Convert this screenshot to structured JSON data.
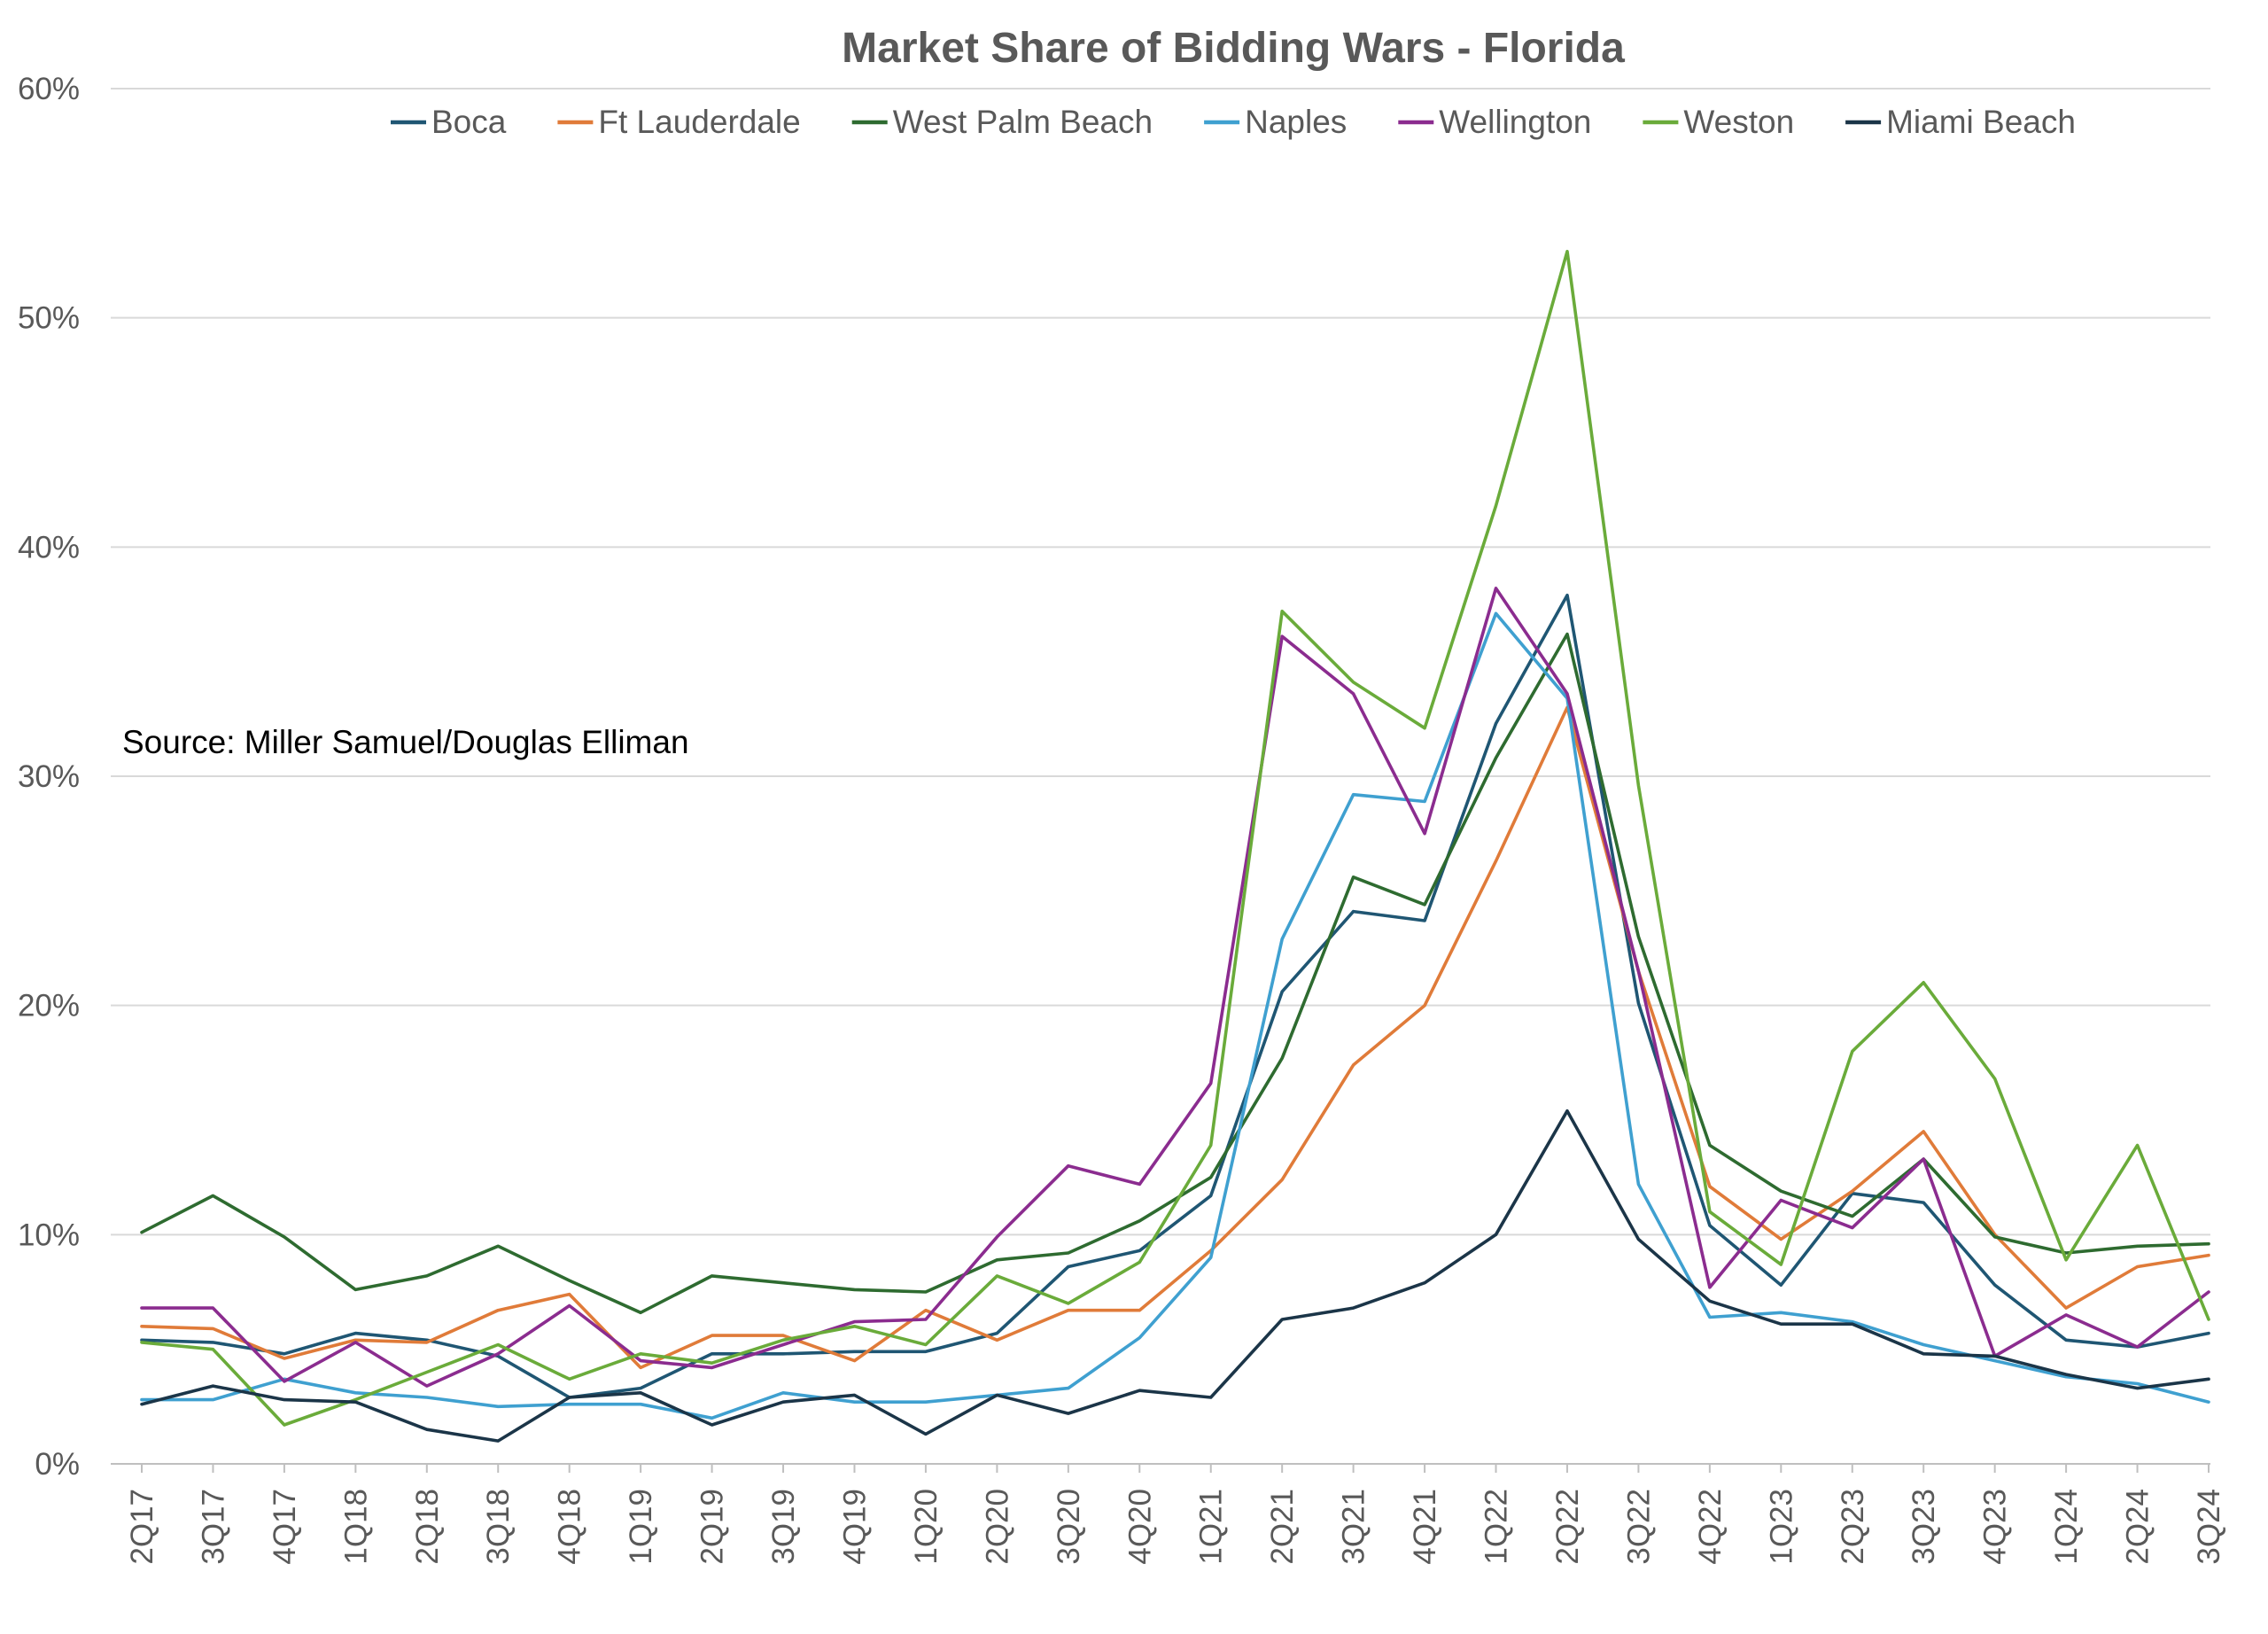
{
  "chart_data": {
    "type": "line",
    "title": "Market Share of Bidding Wars - Florida",
    "annotation": "Source: Miller Samuel/Douglas Elliman",
    "ylim": [
      0,
      60
    ],
    "yticks": [
      0,
      10,
      20,
      30,
      40,
      50,
      60
    ],
    "ytick_labels": [
      "0%",
      "10%",
      "20%",
      "30%",
      "40%",
      "50%",
      "60%"
    ],
    "grid": true,
    "legend_position": "top",
    "categories": [
      "2Q17",
      "3Q17",
      "4Q17",
      "1Q18",
      "2Q18",
      "3Q18",
      "4Q18",
      "1Q19",
      "2Q19",
      "3Q19",
      "4Q19",
      "1Q20",
      "2Q20",
      "3Q20",
      "4Q20",
      "1Q21",
      "2Q21",
      "3Q21",
      "4Q21",
      "1Q22",
      "2Q22",
      "3Q22",
      "4Q22",
      "1Q23",
      "2Q23",
      "3Q23",
      "4Q23",
      "1Q24",
      "2Q24",
      "3Q24"
    ],
    "series": [
      {
        "name": "Boca",
        "color": "#1f5673",
        "values": [
          5.4,
          5.3,
          4.8,
          5.7,
          5.4,
          4.7,
          2.9,
          3.3,
          4.8,
          4.8,
          4.9,
          4.9,
          5.7,
          8.6,
          9.3,
          11.7,
          20.6,
          24.1,
          23.7,
          32.3,
          37.9,
          20.1,
          10.4,
          7.8,
          11.8,
          11.4,
          7.8,
          5.4,
          5.1,
          5.7
        ]
      },
      {
        "name": "Ft Lauderdale",
        "color": "#e07b39",
        "values": [
          6.0,
          5.9,
          4.6,
          5.4,
          5.3,
          6.7,
          7.4,
          4.2,
          5.6,
          5.6,
          4.5,
          6.7,
          5.4,
          6.7,
          6.7,
          9.3,
          12.4,
          17.4,
          20.0,
          26.3,
          33.0,
          21.5,
          12.1,
          9.8,
          11.9,
          14.5,
          10.0,
          6.8,
          8.6,
          9.1
        ]
      },
      {
        "name": "West Palm Beach",
        "color": "#2e6b30",
        "values": [
          10.1,
          11.7,
          9.9,
          7.6,
          8.2,
          9.5,
          8.0,
          6.6,
          8.2,
          7.9,
          7.6,
          7.5,
          8.9,
          9.2,
          10.6,
          12.5,
          17.7,
          25.6,
          24.4,
          30.8,
          36.2,
          23.0,
          13.9,
          11.9,
          10.8,
          13.3,
          9.9,
          9.2,
          9.5,
          9.6
        ]
      },
      {
        "name": "Naples",
        "color": "#3fa0d0",
        "values": [
          2.8,
          2.8,
          3.7,
          3.1,
          2.9,
          2.5,
          2.6,
          2.6,
          2.0,
          3.1,
          2.7,
          2.7,
          3.0,
          3.3,
          5.5,
          9.0,
          22.9,
          29.2,
          28.9,
          37.1,
          33.4,
          12.2,
          6.4,
          6.6,
          6.2,
          5.2,
          4.5,
          3.8,
          3.5,
          2.7
        ]
      },
      {
        "name": "Wellington",
        "color": "#8b2c8f",
        "values": [
          6.8,
          6.8,
          3.6,
          5.3,
          3.4,
          4.8,
          6.9,
          4.5,
          4.2,
          5.2,
          6.2,
          6.3,
          9.9,
          13.0,
          12.2,
          16.6,
          36.1,
          33.6,
          27.5,
          38.2,
          33.6,
          21.5,
          7.7,
          11.5,
          10.3,
          13.3,
          4.7,
          6.5,
          5.1,
          7.5
        ]
      },
      {
        "name": "Weston",
        "color": "#6aab3a",
        "values": [
          5.3,
          5.0,
          1.7,
          2.8,
          4.0,
          5.2,
          3.7,
          4.8,
          4.4,
          5.4,
          6.0,
          5.2,
          8.2,
          7.0,
          8.8,
          13.9,
          37.2,
          34.1,
          32.1,
          41.8,
          52.9,
          29.6,
          11.0,
          8.7,
          18.0,
          21.0,
          16.8,
          8.9,
          13.9,
          6.3
        ]
      },
      {
        "name": "Miami Beach",
        "color": "#1b3548",
        "values": [
          2.6,
          3.4,
          2.8,
          2.7,
          1.5,
          1.0,
          2.9,
          3.1,
          1.7,
          2.7,
          3.0,
          1.3,
          3.0,
          2.2,
          3.2,
          2.9,
          6.3,
          6.8,
          7.9,
          10.0,
          15.4,
          9.8,
          7.1,
          6.1,
          6.1,
          4.8,
          4.7,
          3.9,
          3.3,
          3.7
        ]
      }
    ]
  }
}
